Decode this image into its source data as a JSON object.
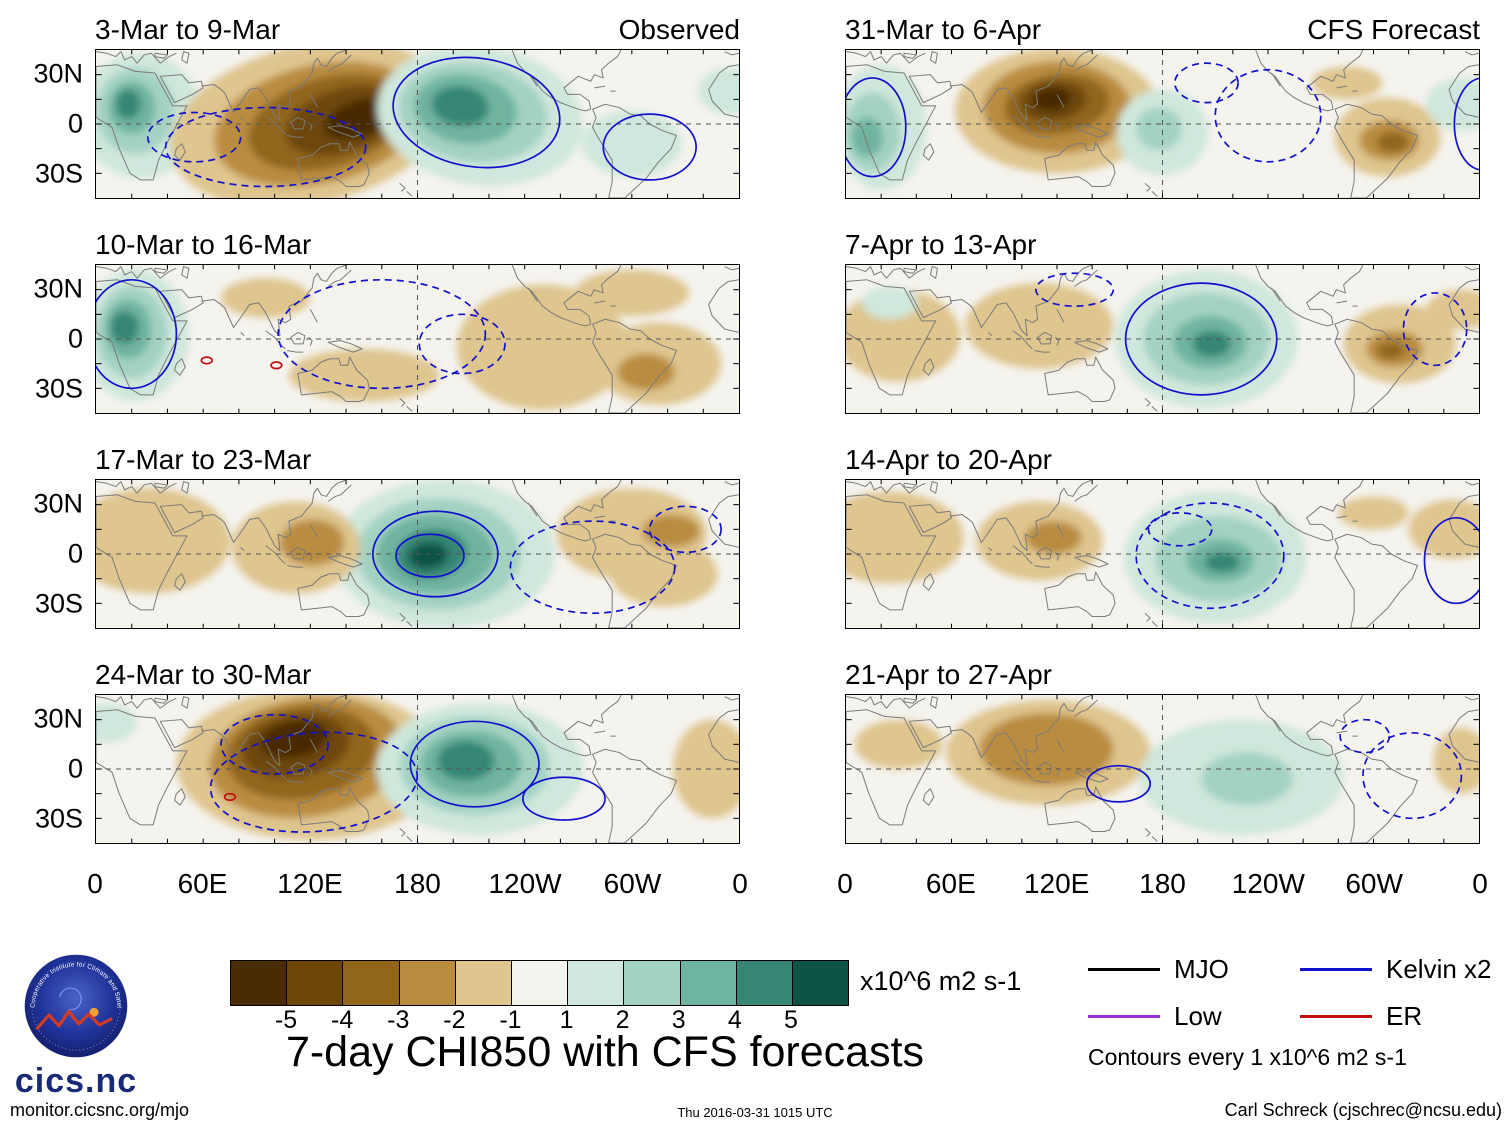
{
  "figure": {
    "title": "7-day CHI850 with CFS forecasts",
    "timestamp": "Thu 2016-03-31 1015 UTC",
    "site": "monitor.cicsnc.org/mjo",
    "credit": "Carl Schreck (cjschrec@ncsu.edu)"
  },
  "logo": {
    "ring_text": "Cooperative Institute for Climate and Satellites",
    "name": "cics.nc"
  },
  "legend": {
    "entries": [
      {
        "label": "MJO",
        "color": "#000000"
      },
      {
        "label": "Kelvin x2",
        "color": "#1212cc"
      },
      {
        "label": "Low",
        "color": "#9b30d9"
      },
      {
        "label": "ER",
        "color": "#c01010"
      }
    ],
    "note": "Contours every 1 x10^6 m2 s-1"
  },
  "chart_data": {
    "type": "heatmap",
    "description": "Eight longitude-time panels of 7-day mean CHI850 velocity-potential anomalies; left column observed weeks, right column CFS forecast weeks. Filled anomalies in x10^6 m2 s-1, blue contours are Kelvin x2, red ER.",
    "axes": {
      "x_ticks": [
        "0",
        "60E",
        "120E",
        "180",
        "120W",
        "60W",
        "0"
      ],
      "y_ticks": [
        "30N",
        "0",
        "30S"
      ],
      "lon_range": [
        0,
        360
      ],
      "lat_range": [
        -45,
        45
      ]
    },
    "colorbar": {
      "labels": [
        "-5",
        "-4",
        "-3",
        "-2",
        "-1",
        "1",
        "2",
        "3",
        "4",
        "5"
      ],
      "colors": [
        "#4a2b03",
        "#6d4607",
        "#91651a",
        "#b98c3f",
        "#dfc58e",
        "#f4f3ee",
        "#cfe7dc",
        "#a3d2c2",
        "#6fb4a0",
        "#358675",
        "#0f5346"
      ],
      "units": "x10^6 m2 s-1"
    },
    "contour_colors": {
      "blue": "#1212cc",
      "red": "#c01010"
    },
    "panels": [
      {
        "title": "3-Mar to 9-Mar",
        "tag": "Observed",
        "column": "observed",
        "anomalies": [
          [
            25,
            5,
            34,
            38,
            1,
            0
          ],
          [
            22,
            8,
            22,
            26,
            2,
            0
          ],
          [
            20,
            10,
            13,
            16,
            3,
            0
          ],
          [
            18,
            12,
            7,
            9,
            4,
            0
          ],
          [
            120,
            0,
            80,
            48,
            -1,
            -15
          ],
          [
            125,
            0,
            60,
            36,
            -2,
            -15
          ],
          [
            130,
            1,
            46,
            27,
            -3,
            -18
          ],
          [
            138,
            2,
            33,
            19,
            -4,
            -20
          ],
          [
            147,
            3,
            20,
            11,
            -5,
            -20
          ],
          [
            215,
            5,
            58,
            42,
            1,
            10
          ],
          [
            211,
            7,
            42,
            30,
            2,
            10
          ],
          [
            207,
            9,
            29,
            21,
            3,
            10
          ],
          [
            204,
            11,
            16,
            12,
            4,
            10
          ],
          [
            300,
            -12,
            28,
            20,
            1,
            0
          ],
          [
            355,
            20,
            18,
            14,
            1,
            0
          ]
        ],
        "contours": [
          [
            213,
            7,
            47,
            33,
            "solid",
            "blue",
            10
          ],
          [
            95,
            -14,
            56,
            24,
            "dashed",
            "blue",
            0
          ],
          [
            55,
            -8,
            26,
            15,
            "dashed",
            "blue",
            0
          ],
          [
            310,
            -14,
            26,
            20,
            "solid",
            "blue",
            0
          ]
        ]
      },
      {
        "title": "10-Mar to 16-Mar",
        "tag": "",
        "column": "observed",
        "anomalies": [
          [
            22,
            2,
            30,
            40,
            1,
            0
          ],
          [
            20,
            4,
            20,
            28,
            2,
            0
          ],
          [
            18,
            6,
            13,
            18,
            3,
            0
          ],
          [
            16,
            7,
            8,
            10,
            4,
            0
          ],
          [
            150,
            -22,
            42,
            16,
            -1,
            0
          ],
          [
            250,
            -5,
            48,
            38,
            -1,
            0
          ],
          [
            315,
            -15,
            35,
            25,
            -1,
            0
          ],
          [
            308,
            -20,
            16,
            11,
            -2,
            0
          ],
          [
            300,
            28,
            32,
            14,
            -1,
            0
          ],
          [
            95,
            25,
            25,
            12,
            -1,
            0
          ]
        ],
        "contours": [
          [
            20,
            3,
            25,
            33,
            "solid",
            "blue",
            0
          ],
          [
            160,
            3,
            58,
            33,
            "dashed",
            "blue",
            0
          ],
          [
            205,
            -3,
            24,
            18,
            "dashed",
            "blue",
            0
          ],
          [
            62,
            -13,
            3,
            2,
            "solid",
            "red",
            0
          ],
          [
            101,
            -16,
            3,
            2,
            "solid",
            "red",
            0
          ]
        ]
      },
      {
        "title": "17-Mar to 23-Mar",
        "tag": "",
        "column": "observed",
        "anomalies": [
          [
            195,
            0,
            62,
            45,
            1,
            0
          ],
          [
            192,
            0,
            46,
            34,
            2,
            0
          ],
          [
            190,
            0,
            33,
            24,
            3,
            0
          ],
          [
            188,
            0,
            20,
            15,
            4,
            -10
          ],
          [
            186,
            -1,
            11,
            8,
            5,
            -10
          ],
          [
            30,
            8,
            45,
            32,
            -1,
            0
          ],
          [
            112,
            4,
            36,
            28,
            -1,
            0
          ],
          [
            121,
            7,
            18,
            14,
            -2,
            0
          ],
          [
            300,
            12,
            42,
            28,
            -1,
            0
          ],
          [
            318,
            -12,
            30,
            20,
            -1,
            0
          ],
          [
            322,
            14,
            16,
            10,
            -2,
            0
          ]
        ],
        "contours": [
          [
            190,
            0,
            35,
            26,
            "solid",
            "blue",
            0
          ],
          [
            187,
            -1,
            19,
            13,
            "solid",
            "blue",
            0
          ],
          [
            278,
            -8,
            46,
            28,
            "dashed",
            "blue",
            0
          ],
          [
            330,
            15,
            20,
            14,
            "dashed",
            "blue",
            0
          ]
        ]
      },
      {
        "title": "24-Mar to 30-Mar",
        "tag": "",
        "column": "observed",
        "anomalies": [
          [
            120,
            3,
            75,
            46,
            -1,
            0
          ],
          [
            118,
            7,
            55,
            36,
            -2,
            -10
          ],
          [
            115,
            10,
            42,
            28,
            -3,
            -10
          ],
          [
            112,
            14,
            30,
            19,
            -4,
            -12
          ],
          [
            111,
            18,
            19,
            11,
            -5,
            -12
          ],
          [
            215,
            0,
            58,
            40,
            1,
            0
          ],
          [
            212,
            2,
            42,
            30,
            2,
            0
          ],
          [
            210,
            3,
            28,
            20,
            3,
            0
          ],
          [
            207,
            5,
            16,
            12,
            4,
            0
          ],
          [
            5,
            28,
            18,
            12,
            1,
            0
          ],
          [
            345,
            0,
            22,
            30,
            -1,
            0
          ]
        ],
        "contours": [
          [
            212,
            3,
            36,
            26,
            "solid",
            "blue",
            0
          ],
          [
            262,
            -18,
            23,
            13,
            "solid",
            "blue",
            0
          ],
          [
            122,
            -8,
            58,
            30,
            "dashed",
            "blue",
            -5
          ],
          [
            100,
            15,
            30,
            18,
            "dashed",
            "blue",
            0
          ],
          [
            75,
            -17,
            3,
            2,
            "solid",
            "red",
            0
          ]
        ]
      },
      {
        "title": "31-Mar to 6-Apr",
        "tag": "CFS Forecast",
        "column": "forecast",
        "anomalies": [
          [
            120,
            8,
            58,
            38,
            -1,
            0
          ],
          [
            120,
            10,
            42,
            28,
            -2,
            0
          ],
          [
            120,
            12,
            30,
            18,
            -3,
            -8
          ],
          [
            118,
            14,
            19,
            12,
            -4,
            -8
          ],
          [
            117,
            15,
            11,
            7,
            -5,
            -8
          ],
          [
            20,
            -2,
            26,
            38,
            1,
            0
          ],
          [
            15,
            -5,
            16,
            24,
            2,
            0
          ],
          [
            12,
            -8,
            9,
            12,
            3,
            0
          ],
          [
            180,
            -5,
            26,
            26,
            1,
            0
          ],
          [
            178,
            -3,
            13,
            13,
            2,
            0
          ],
          [
            308,
            -8,
            30,
            24,
            -1,
            0
          ],
          [
            309,
            -10,
            17,
            12,
            -2,
            0
          ],
          [
            311,
            -11,
            9,
            6,
            -3,
            0
          ],
          [
            350,
            12,
            20,
            16,
            1,
            0
          ],
          [
            285,
            25,
            20,
            10,
            -1,
            0
          ]
        ],
        "contours": [
          [
            15,
            -2,
            19,
            30,
            "solid",
            "blue",
            0
          ],
          [
            240,
            5,
            30,
            28,
            "dashed",
            "blue",
            0
          ],
          [
            205,
            25,
            18,
            12,
            "dashed",
            "blue",
            0
          ],
          [
            362,
            0,
            16,
            28,
            "solid",
            "blue",
            0
          ]
        ]
      },
      {
        "title": "7-Apr to 13-Apr",
        "tag": "",
        "column": "forecast",
        "anomalies": [
          [
            205,
            0,
            52,
            42,
            1,
            0
          ],
          [
            205,
            0,
            36,
            28,
            2,
            0
          ],
          [
            207,
            -2,
            21,
            16,
            3,
            0
          ],
          [
            208,
            -3,
            11,
            8,
            4,
            0
          ],
          [
            110,
            8,
            42,
            26,
            -1,
            0
          ],
          [
            30,
            2,
            35,
            28,
            -1,
            0
          ],
          [
            25,
            22,
            16,
            10,
            1,
            0
          ],
          [
            315,
            -3,
            32,
            24,
            -1,
            0
          ],
          [
            312,
            -6,
            16,
            11,
            -2,
            0
          ],
          [
            310,
            -7,
            8,
            5,
            -3,
            0
          ],
          [
            350,
            18,
            20,
            12,
            -1,
            0
          ]
        ],
        "contours": [
          [
            202,
            0,
            43,
            34,
            "solid",
            "blue",
            0
          ],
          [
            335,
            6,
            18,
            22,
            "dashed",
            "blue",
            0
          ],
          [
            130,
            30,
            22,
            10,
            "dashed",
            "blue",
            0
          ]
        ]
      },
      {
        "title": "14-Apr to 20-Apr",
        "tag": "",
        "column": "forecast",
        "anomalies": [
          [
            210,
            -2,
            52,
            40,
            1,
            0
          ],
          [
            212,
            -3,
            36,
            26,
            2,
            0
          ],
          [
            213,
            -4,
            19,
            13,
            3,
            0
          ],
          [
            214,
            -5,
            10,
            6,
            4,
            0
          ],
          [
            25,
            10,
            42,
            28,
            -1,
            0
          ],
          [
            110,
            8,
            36,
            24,
            -1,
            0
          ],
          [
            118,
            10,
            16,
            10,
            -2,
            0
          ],
          [
            345,
            15,
            25,
            18,
            -1,
            0
          ],
          [
            300,
            25,
            20,
            10,
            -1,
            0
          ]
        ],
        "contours": [
          [
            207,
            -1,
            42,
            32,
            "dashed",
            "blue",
            0
          ],
          [
            190,
            15,
            18,
            10,
            "dashed",
            "blue",
            0
          ],
          [
            347,
            -4,
            18,
            26,
            "solid",
            "blue",
            0
          ]
        ]
      },
      {
        "title": "21-Apr to 27-Apr",
        "tag": "",
        "column": "forecast",
        "anomalies": [
          [
            115,
            10,
            58,
            32,
            -1,
            0
          ],
          [
            114,
            12,
            38,
            22,
            -2,
            0
          ],
          [
            225,
            -5,
            58,
            35,
            1,
            0
          ],
          [
            228,
            -6,
            26,
            16,
            2,
            0
          ],
          [
            350,
            5,
            16,
            20,
            -1,
            0
          ],
          [
            30,
            15,
            25,
            15,
            -1,
            0
          ]
        ],
        "contours": [
          [
            155,
            -9,
            18,
            11,
            "solid",
            "blue",
            0
          ],
          [
            322,
            -4,
            28,
            26,
            "dashed",
            "blue",
            0
          ],
          [
            295,
            20,
            14,
            10,
            "dashed",
            "blue",
            0
          ]
        ]
      }
    ]
  }
}
